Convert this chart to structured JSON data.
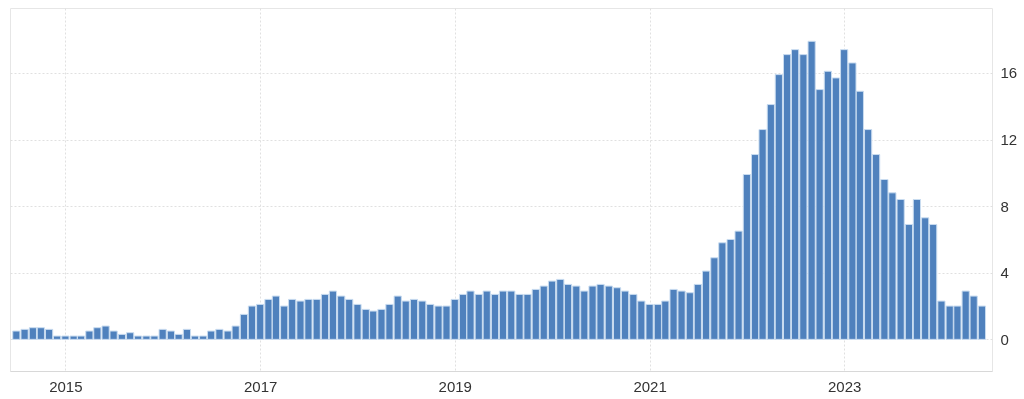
{
  "chart_data": {
    "type": "bar",
    "color": "#4f81bd",
    "grid": true,
    "xlim": [
      "2014-06-26",
      "2024-06-20"
    ],
    "xticks": [
      "2015",
      "2017",
      "2019",
      "2021",
      "2023"
    ],
    "ylim": [
      -1.9,
      19.9
    ],
    "yticks": [
      0,
      4,
      8,
      12,
      16
    ],
    "x": [
      "2014-07",
      "2014-08",
      "2014-09",
      "2014-10",
      "2014-11",
      "2014-12",
      "2015-01",
      "2015-02",
      "2015-03",
      "2015-04",
      "2015-05",
      "2015-06",
      "2015-07",
      "2015-08",
      "2015-09",
      "2015-10",
      "2015-11",
      "2015-12",
      "2016-01",
      "2016-02",
      "2016-03",
      "2016-04",
      "2016-05",
      "2016-06",
      "2016-07",
      "2016-08",
      "2016-09",
      "2016-10",
      "2016-11",
      "2016-12",
      "2017-01",
      "2017-02",
      "2017-03",
      "2017-04",
      "2017-05",
      "2017-06",
      "2017-07",
      "2017-08",
      "2017-09",
      "2017-10",
      "2017-11",
      "2017-12",
      "2018-01",
      "2018-02",
      "2018-03",
      "2018-04",
      "2018-05",
      "2018-06",
      "2018-07",
      "2018-08",
      "2018-09",
      "2018-10",
      "2018-11",
      "2018-12",
      "2019-01",
      "2019-02",
      "2019-03",
      "2019-04",
      "2019-05",
      "2019-06",
      "2019-07",
      "2019-08",
      "2019-09",
      "2019-10",
      "2019-11",
      "2019-12",
      "2020-01",
      "2020-02",
      "2020-03",
      "2020-04",
      "2020-05",
      "2020-06",
      "2020-07",
      "2020-08",
      "2020-09",
      "2020-10",
      "2020-11",
      "2020-12",
      "2021-01",
      "2021-02",
      "2021-03",
      "2021-04",
      "2021-05",
      "2021-06",
      "2021-07",
      "2021-08",
      "2021-09",
      "2021-10",
      "2021-11",
      "2021-12",
      "2022-01",
      "2022-02",
      "2022-03",
      "2022-04",
      "2022-05",
      "2022-06",
      "2022-07",
      "2022-08",
      "2022-09",
      "2022-10",
      "2022-11",
      "2022-12",
      "2023-01",
      "2023-02",
      "2023-03",
      "2023-04",
      "2023-05",
      "2023-06",
      "2023-07",
      "2023-08",
      "2023-09",
      "2023-10",
      "2023-11",
      "2023-12",
      "2024-01",
      "2024-02",
      "2024-03",
      "2024-04",
      "2024-05",
      "2024-06"
    ],
    "values": [
      0.5,
      0.6,
      0.7,
      0.7,
      0.6,
      0.2,
      0.2,
      0.2,
      0.2,
      0.5,
      0.7,
      0.8,
      0.5,
      0.3,
      0.4,
      0.2,
      0.2,
      0.2,
      0.6,
      0.5,
      0.3,
      0.6,
      0.2,
      0.2,
      0.5,
      0.6,
      0.5,
      0.8,
      1.5,
      2.0,
      2.1,
      2.4,
      2.6,
      2.0,
      2.4,
      2.3,
      2.4,
      2.4,
      2.7,
      2.9,
      2.6,
      2.4,
      2.1,
      1.8,
      1.7,
      1.8,
      2.1,
      2.6,
      2.3,
      2.4,
      2.3,
      2.1,
      2.0,
      2.0,
      2.4,
      2.7,
      2.9,
      2.7,
      2.9,
      2.7,
      2.9,
      2.9,
      2.7,
      2.7,
      3.0,
      3.2,
      3.5,
      3.6,
      3.3,
      3.2,
      2.9,
      3.2,
      3.3,
      3.2,
      3.1,
      2.9,
      2.7,
      2.3,
      2.1,
      2.1,
      2.3,
      3.0,
      2.9,
      2.8,
      3.3,
      4.1,
      4.9,
      5.8,
      6.0,
      6.5,
      9.9,
      11.1,
      12.6,
      14.1,
      15.9,
      17.1,
      17.4,
      17.1,
      17.9,
      15.0,
      16.1,
      15.7,
      17.4,
      16.6,
      14.9,
      12.6,
      11.1,
      9.6,
      8.8,
      8.4,
      6.9,
      8.4,
      7.3,
      6.9,
      2.3,
      2.0,
      2.0,
      2.9,
      2.6,
      2.0
    ]
  }
}
